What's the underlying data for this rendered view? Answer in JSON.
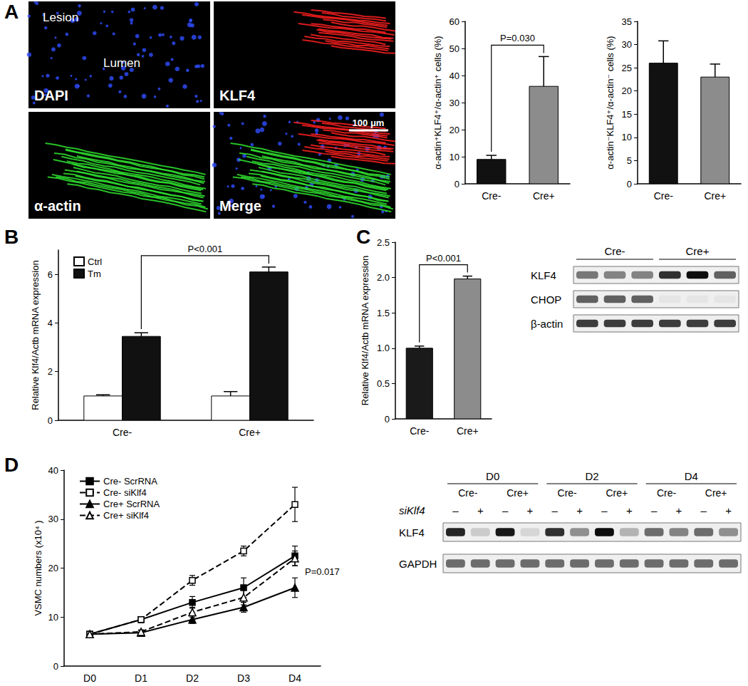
{
  "chart_data": [
    {
      "type": "bar",
      "categories": [
        "Cre-",
        "Cre+"
      ],
      "series": [
        {
          "values": [
            9,
            36
          ],
          "errors": [
            1.5,
            11
          ],
          "colors": [
            "#111111",
            "#8c8c8c"
          ]
        }
      ],
      "ylim": [
        0,
        60
      ],
      "yticks": [
        0,
        10,
        20,
        30,
        40,
        50,
        60
      ],
      "y_label": "α-actin⁺KLF4⁺/α-actin⁺ cells (%)",
      "annotations": [
        {
          "text": "P=0.030",
          "from": "Cre-",
          "to": "Cre+"
        }
      ],
      "grid": false
    },
    {
      "type": "bar",
      "categories": [
        "Cre-",
        "Cre+"
      ],
      "series": [
        {
          "values": [
            26,
            23
          ],
          "errors": [
            4.8,
            2.8
          ],
          "colors": [
            "#111111",
            "#8c8c8c"
          ]
        }
      ],
      "ylim": [
        0,
        35
      ],
      "yticks": [
        0,
        5,
        10,
        15,
        20,
        25,
        30,
        35
      ],
      "y_label": "α-actin⁻KLF4⁺/α-actin⁻ cells (%)",
      "grid": false
    },
    {
      "type": "bar",
      "categories": [
        "Cre-",
        "Cre+"
      ],
      "series": [
        {
          "name": "Ctrl",
          "color": "#ffffff",
          "values": [
            1,
            1
          ],
          "errors": [
            0.05,
            0.18
          ]
        },
        {
          "name": "Tm",
          "color": "#111111",
          "values": [
            3.45,
            6.1
          ],
          "errors": [
            0.15,
            0.2
          ]
        }
      ],
      "ylim": [
        0,
        7
      ],
      "yticks": [
        0,
        2,
        4,
        6
      ],
      "y_label": "Relative Klf4/Actb mRNA expression",
      "legend": "top-left",
      "annotations": [
        {
          "text": "P<0.001",
          "from": "Cre-",
          "to": "Cre+",
          "series": "Tm"
        }
      ],
      "grid": false
    },
    {
      "type": "bar",
      "categories": [
        "Cre-",
        "Cre+"
      ],
      "series": [
        {
          "values": [
            1,
            1.98
          ],
          "errors": [
            0.03,
            0.04
          ],
          "colors": [
            "#1a1a1a",
            "#8c8c8c"
          ]
        }
      ],
      "ylim": [
        0,
        2.5
      ],
      "yticks": [
        0,
        0.5,
        {
          "value": 1,
          "label": "1.0"
        },
        1.5,
        {
          "value": 2,
          "label": "2.0"
        },
        2.5
      ],
      "y_label": "Relative Klf4/Actb mRNA expression",
      "annotations": [
        {
          "text": "P<0.001",
          "from": "Cre-",
          "to": "Cre+"
        }
      ],
      "grid": false
    },
    {
      "type": "line",
      "categories": [
        "D0",
        "D1",
        "D2",
        "D3",
        "D4"
      ],
      "series": [
        {
          "name": "Cre- ScrRNA",
          "color": "#000000",
          "marker": "square",
          "line_style": "solid",
          "values": [
            6.5,
            9.5,
            13,
            16,
            22.5
          ],
          "errors": [
            0.5,
            0.6,
            1.2,
            2,
            2
          ]
        },
        {
          "name": "Cre- siKlf4",
          "color": "#000000",
          "marker": "open_square",
          "line_style": "dashed",
          "values": [
            6.5,
            9.5,
            17.5,
            23.5,
            33
          ],
          "errors": [
            0.3,
            0.6,
            1,
            1,
            3.5
          ]
        },
        {
          "name": "Cre+ ScrRNA",
          "color": "#000000",
          "marker": "triangle",
          "line_style": "solid",
          "values": [
            6.5,
            6.8,
            9.5,
            12,
            16
          ],
          "errors": [
            0.3,
            0.4,
            0.8,
            1,
            2
          ]
        },
        {
          "name": "Cre+ siKlf4",
          "color": "#000000",
          "marker": "open_triangle",
          "line_style": "dashed",
          "values": [
            6.5,
            7,
            11,
            14,
            22
          ],
          "errors": [
            0.3,
            0.4,
            1,
            1.5,
            1.5
          ]
        }
      ],
      "ylim": [
        0,
        40
      ],
      "yticks": [
        0,
        10,
        20,
        30,
        40
      ],
      "y_label": "VSMC numbers (x10⁴ )",
      "legend": "top-left",
      "annotations": [
        {
          "text": "P=0.017",
          "at": "D4",
          "series": [
            "Cre- ScrRNA",
            "Cre+ ScrRNA"
          ]
        }
      ],
      "grid": false
    }
  ],
  "figure": {
    "panel_labels": [
      "A",
      "B",
      "C",
      "D"
    ],
    "micrographs": [
      {
        "label": "DAPI",
        "notes": [
          "Lesion",
          "Lumen"
        ]
      },
      {
        "label": "KLF4"
      },
      {
        "label": "α-actin"
      },
      {
        "label": "Merge",
        "scale_bar": "100 μm"
      }
    ],
    "blots": [
      {
        "groups": [
          "Cre-",
          "Cre+"
        ],
        "rows": [
          {
            "label": "KLF4",
            "intensity": [
              0.5,
              0.45,
              0.45,
              0.8,
              0.95,
              0.6
            ]
          },
          {
            "label": "CHOP",
            "intensity": [
              0.6,
              0.6,
              0.6,
              0.04,
              0.04,
              0.04
            ]
          },
          {
            "label": "β-actin",
            "intensity": [
              0.75,
              0.75,
              0.75,
              0.75,
              0.75,
              0.75
            ]
          }
        ]
      },
      {
        "times": [
          "D0",
          "D2",
          "D4"
        ],
        "groups": [
          "Cre-",
          "Cre+"
        ],
        "treatment_label": "siKlf4",
        "treatment": [
          "–",
          "+"
        ],
        "rows": [
          {
            "label": "KLF4",
            "intensity": [
              0.85,
              0.15,
              0.9,
              0.1,
              0.8,
              0.4,
              0.95,
              0.25,
              0.55,
              0.45,
              0.55,
              0.4
            ]
          },
          {
            "label": "GAPDH",
            "intensity": [
              0.55,
              0.55,
              0.55,
              0.55,
              0.55,
              0.55,
              0.55,
              0.55,
              0.55,
              0.55,
              0.55,
              0.55
            ]
          }
        ]
      }
    ]
  }
}
